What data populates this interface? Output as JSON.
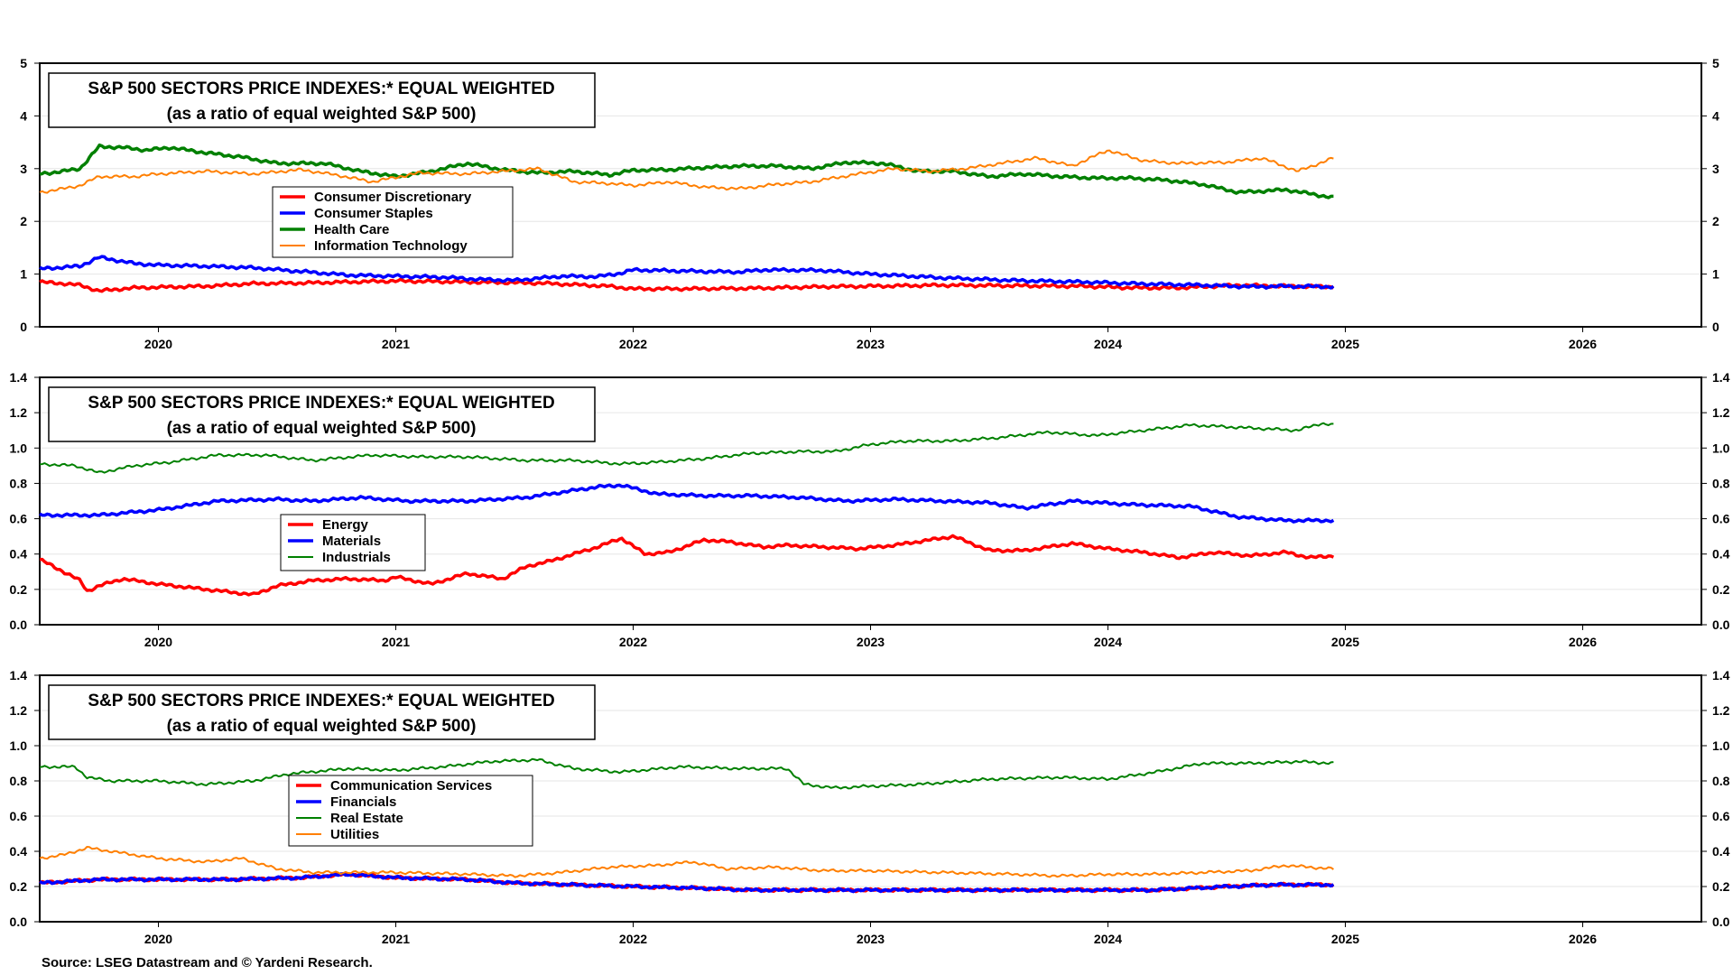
{
  "source": "Source: LSEG Datastream and © Yardeni Research.",
  "x_ticks": [
    "2020",
    "2021",
    "2022",
    "2023",
    "2024",
    "2025",
    "2026"
  ],
  "chart_data": [
    {
      "type": "line",
      "title": "S&P 500 SECTORS PRICE INDEXES:* EQUAL WEIGHTED",
      "subtitle": "(as a ratio of equal weighted S&P 500)",
      "xlim": [
        2019.5,
        2026.5
      ],
      "ylim": [
        0,
        5
      ],
      "yticks": [
        "0",
        "1",
        "2",
        "3",
        "4",
        "5"
      ],
      "legend_position": "upper-left",
      "series": [
        {
          "name": "Consumer Discretionary",
          "color": "#ff0000",
          "width": 3.5,
          "x": [
            2019.5,
            2019.6,
            2019.67,
            2019.75,
            2019.9,
            2020.0,
            2020.2,
            2020.4,
            2020.6,
            2020.8,
            2021.0,
            2021.3,
            2021.6,
            2021.9,
            2022.0,
            2022.2,
            2022.5,
            2022.8,
            2023.0,
            2023.3,
            2023.6,
            2023.9,
            2024.1,
            2024.3,
            2024.55,
            2024.75,
            2024.95
          ],
          "y": [
            0.85,
            0.82,
            0.79,
            0.68,
            0.74,
            0.75,
            0.77,
            0.82,
            0.83,
            0.85,
            0.87,
            0.85,
            0.83,
            0.77,
            0.72,
            0.72,
            0.73,
            0.76,
            0.77,
            0.79,
            0.78,
            0.77,
            0.74,
            0.74,
            0.79,
            0.77,
            0.76
          ]
        },
        {
          "name": "Consumer Staples",
          "color": "#0000ff",
          "width": 3.5,
          "x": [
            2019.5,
            2019.67,
            2019.75,
            2019.9,
            2020.0,
            2020.2,
            2020.4,
            2020.6,
            2020.8,
            2021.0,
            2021.2,
            2021.35,
            2021.5,
            2021.7,
            2021.85,
            2021.95,
            2022.0,
            2022.3,
            2022.45,
            2022.55,
            2022.8,
            2023.0,
            2023.3,
            2023.6,
            2023.9,
            2024.1,
            2024.4,
            2024.6,
            2024.75,
            2024.95
          ],
          "y": [
            1.1,
            1.15,
            1.32,
            1.2,
            1.17,
            1.15,
            1.12,
            1.05,
            0.98,
            0.96,
            0.94,
            0.9,
            0.88,
            0.96,
            0.95,
            1.02,
            1.08,
            1.05,
            1.04,
            1.08,
            1.07,
            1.0,
            0.93,
            0.88,
            0.85,
            0.82,
            0.79,
            0.76,
            0.77,
            0.76
          ]
        },
        {
          "name": "Health Care",
          "color": "#008000",
          "width": 3.5,
          "x": [
            2019.5,
            2019.6,
            2019.67,
            2019.75,
            2019.85,
            2019.95,
            2020.05,
            2020.2,
            2020.35,
            2020.5,
            2020.7,
            2020.85,
            2021.0,
            2021.15,
            2021.3,
            2021.45,
            2021.6,
            2021.75,
            2021.9,
            2022.0,
            2022.15,
            2022.3,
            2022.45,
            2022.6,
            2022.75,
            2022.9,
            2023.05,
            2023.2,
            2023.35,
            2023.5,
            2023.65,
            2023.8,
            2023.95,
            2024.1,
            2024.25,
            2024.4,
            2024.55,
            2024.75,
            2024.95
          ],
          "y": [
            2.9,
            2.95,
            3.0,
            3.42,
            3.4,
            3.35,
            3.4,
            3.3,
            3.22,
            3.1,
            3.1,
            2.95,
            2.85,
            2.95,
            3.1,
            2.98,
            2.92,
            2.95,
            2.88,
            2.97,
            2.98,
            3.02,
            3.05,
            3.05,
            3.0,
            3.12,
            3.1,
            2.95,
            2.95,
            2.85,
            2.9,
            2.85,
            2.82,
            2.82,
            2.78,
            2.7,
            2.55,
            2.6,
            2.45
          ]
        },
        {
          "name": "Information Technology",
          "color": "#ff7f00",
          "width": 2,
          "x": [
            2019.5,
            2019.6,
            2019.67,
            2019.75,
            2019.9,
            2020.0,
            2020.2,
            2020.4,
            2020.6,
            2020.75,
            2020.9,
            2021.1,
            2021.3,
            2021.45,
            2021.6,
            2021.75,
            2021.9,
            2022.0,
            2022.15,
            2022.3,
            2022.45,
            2022.6,
            2022.75,
            2022.95,
            2023.1,
            2023.25,
            2023.4,
            2023.55,
            2023.7,
            2023.85,
            2024.0,
            2024.15,
            2024.3,
            2024.5,
            2024.65,
            2024.8,
            2024.95
          ],
          "y": [
            2.55,
            2.62,
            2.68,
            2.85,
            2.85,
            2.9,
            2.95,
            2.9,
            2.98,
            2.88,
            2.75,
            2.92,
            2.9,
            2.95,
            3.0,
            2.75,
            2.72,
            2.68,
            2.75,
            2.65,
            2.62,
            2.7,
            2.75,
            2.9,
            3.0,
            2.95,
            3.0,
            3.1,
            3.2,
            3.05,
            3.35,
            3.15,
            3.1,
            3.12,
            3.2,
            2.95,
            3.2
          ]
        }
      ]
    },
    {
      "type": "line",
      "title": "S&P 500 SECTORS PRICE INDEXES:* EQUAL WEIGHTED",
      "subtitle": "(as a ratio of equal weighted S&P 500)",
      "xlim": [
        2019.5,
        2026.5
      ],
      "ylim": [
        0,
        1.4
      ],
      "yticks": [
        "0.0",
        "0.2",
        "0.4",
        "0.6",
        "0.8",
        "1.0",
        "1.2",
        "1.4"
      ],
      "legend_position": "middle-left",
      "series": [
        {
          "name": "Energy",
          "color": "#ff0000",
          "width": 3.5,
          "x": [
            2019.5,
            2019.6,
            2019.67,
            2019.7,
            2019.75,
            2019.85,
            2020.0,
            2020.2,
            2020.4,
            2020.5,
            2020.65,
            2020.8,
            2020.95,
            2021.0,
            2021.15,
            2021.3,
            2021.45,
            2021.55,
            2021.65,
            2021.75,
            2021.85,
            2021.95,
            2022.05,
            2022.15,
            2022.3,
            2022.4,
            2022.55,
            2022.65,
            2022.8,
            2022.95,
            2023.1,
            2023.25,
            2023.35,
            2023.5,
            2023.65,
            2023.85,
            2024.0,
            2024.15,
            2024.3,
            2024.45,
            2024.6,
            2024.75,
            2024.85,
            2024.95
          ],
          "y": [
            0.37,
            0.3,
            0.25,
            0.19,
            0.22,
            0.26,
            0.23,
            0.2,
            0.17,
            0.22,
            0.25,
            0.26,
            0.25,
            0.27,
            0.23,
            0.29,
            0.26,
            0.33,
            0.36,
            0.4,
            0.44,
            0.49,
            0.4,
            0.41,
            0.48,
            0.47,
            0.44,
            0.45,
            0.44,
            0.43,
            0.45,
            0.48,
            0.5,
            0.42,
            0.42,
            0.46,
            0.43,
            0.41,
            0.38,
            0.41,
            0.39,
            0.41,
            0.38,
            0.39
          ]
        },
        {
          "name": "Materials",
          "color": "#0000ff",
          "width": 3.5,
          "x": [
            2019.5,
            2019.75,
            2020.0,
            2020.25,
            2020.5,
            2020.65,
            2020.85,
            2021.05,
            2021.3,
            2021.55,
            2021.75,
            2021.85,
            2021.95,
            2022.1,
            2022.3,
            2022.5,
            2022.7,
            2022.9,
            2023.1,
            2023.3,
            2023.5,
            2023.65,
            2023.85,
            2024.1,
            2024.35,
            2024.55,
            2024.75,
            2024.95
          ],
          "y": [
            0.62,
            0.62,
            0.65,
            0.7,
            0.71,
            0.7,
            0.72,
            0.7,
            0.7,
            0.72,
            0.76,
            0.78,
            0.79,
            0.74,
            0.73,
            0.73,
            0.72,
            0.7,
            0.71,
            0.7,
            0.69,
            0.66,
            0.7,
            0.68,
            0.67,
            0.61,
            0.59,
            0.59
          ]
        },
        {
          "name": "Industrials",
          "color": "#008000",
          "width": 2,
          "x": [
            2019.5,
            2019.65,
            2019.75,
            2019.9,
            2020.05,
            2020.25,
            2020.45,
            2020.65,
            2020.9,
            2021.1,
            2021.3,
            2021.55,
            2021.75,
            2021.95,
            2022.1,
            2022.3,
            2022.5,
            2022.7,
            2022.85,
            2023.0,
            2023.15,
            2023.35,
            2023.55,
            2023.75,
            2023.95,
            2024.15,
            2024.35,
            2024.5,
            2024.65,
            2024.8,
            2024.9,
            2024.95
          ],
          "y": [
            0.91,
            0.9,
            0.86,
            0.9,
            0.92,
            0.96,
            0.96,
            0.93,
            0.96,
            0.95,
            0.95,
            0.93,
            0.93,
            0.91,
            0.92,
            0.94,
            0.97,
            0.98,
            0.98,
            1.02,
            1.04,
            1.04,
            1.06,
            1.09,
            1.07,
            1.1,
            1.13,
            1.12,
            1.11,
            1.1,
            1.14,
            1.13
          ]
        }
      ]
    },
    {
      "type": "line",
      "title": "S&P 500 SECTORS PRICE INDEXES:* EQUAL WEIGHTED",
      "subtitle": "(as a ratio of equal weighted S&P 500)",
      "xlim": [
        2019.5,
        2026.5
      ],
      "ylim": [
        0,
        1.4
      ],
      "yticks": [
        "0.0",
        "0.2",
        "0.4",
        "0.6",
        "0.8",
        "1.0",
        "1.2",
        "1.4"
      ],
      "legend_position": "middle-left",
      "series": [
        {
          "name": "Communication Services",
          "color": "#ff0000",
          "width": 3.5,
          "x": [
            2019.5,
            2019.75,
            2020.0,
            2020.3,
            2020.6,
            2020.8,
            2021.0,
            2021.3,
            2021.5,
            2021.75,
            2022.0,
            2022.3,
            2022.5,
            2022.8,
            2023.0,
            2023.3,
            2023.6,
            2023.9,
            2024.2,
            2024.5,
            2024.7,
            2024.95
          ],
          "y": [
            0.22,
            0.24,
            0.24,
            0.24,
            0.25,
            0.27,
            0.25,
            0.24,
            0.22,
            0.21,
            0.2,
            0.19,
            0.18,
            0.18,
            0.18,
            0.18,
            0.18,
            0.18,
            0.18,
            0.2,
            0.21,
            0.21
          ]
        },
        {
          "name": "Financials",
          "color": "#0000ff",
          "width": 3.5,
          "x": [
            2019.5,
            2019.75,
            2020.0,
            2020.3,
            2020.6,
            2020.8,
            2021.0,
            2021.3,
            2021.5,
            2021.75,
            2022.0,
            2022.3,
            2022.5,
            2022.8,
            2023.0,
            2023.3,
            2023.6,
            2023.9,
            2024.2,
            2024.5,
            2024.7,
            2024.95
          ],
          "y": [
            0.22,
            0.24,
            0.24,
            0.24,
            0.25,
            0.27,
            0.25,
            0.24,
            0.22,
            0.21,
            0.2,
            0.19,
            0.18,
            0.18,
            0.18,
            0.18,
            0.18,
            0.18,
            0.18,
            0.2,
            0.21,
            0.21
          ]
        },
        {
          "name": "Real Estate",
          "color": "#008000",
          "width": 2,
          "x": [
            2019.5,
            2019.65,
            2019.7,
            2019.8,
            2020.0,
            2020.2,
            2020.4,
            2020.55,
            2020.8,
            2021.0,
            2021.2,
            2021.4,
            2021.6,
            2021.75,
            2021.95,
            2022.2,
            2022.45,
            2022.65,
            2022.72,
            2022.85,
            2023.0,
            2023.2,
            2023.5,
            2023.8,
            2024.0,
            2024.2,
            2024.4,
            2024.6,
            2024.8,
            2024.95
          ],
          "y": [
            0.88,
            0.88,
            0.82,
            0.8,
            0.8,
            0.78,
            0.8,
            0.84,
            0.87,
            0.86,
            0.88,
            0.91,
            0.92,
            0.87,
            0.85,
            0.88,
            0.87,
            0.87,
            0.78,
            0.76,
            0.77,
            0.78,
            0.81,
            0.82,
            0.81,
            0.85,
            0.9,
            0.9,
            0.91,
            0.9
          ]
        },
        {
          "name": "Utilities",
          "color": "#ff7f00",
          "width": 2,
          "x": [
            2019.5,
            2019.6,
            2019.7,
            2019.8,
            2020.0,
            2020.2,
            2020.35,
            2020.5,
            2020.65,
            2020.85,
            2021.0,
            2021.3,
            2021.5,
            2021.7,
            2021.9,
            2022.1,
            2022.25,
            2022.4,
            2022.6,
            2022.8,
            2023.0,
            2023.3,
            2023.6,
            2023.8,
            2024.0,
            2024.2,
            2024.4,
            2024.6,
            2024.75,
            2024.95
          ],
          "y": [
            0.36,
            0.38,
            0.42,
            0.4,
            0.36,
            0.34,
            0.36,
            0.3,
            0.28,
            0.28,
            0.28,
            0.27,
            0.26,
            0.28,
            0.31,
            0.32,
            0.34,
            0.3,
            0.31,
            0.29,
            0.29,
            0.28,
            0.27,
            0.26,
            0.27,
            0.27,
            0.28,
            0.29,
            0.32,
            0.3
          ]
        }
      ]
    }
  ]
}
